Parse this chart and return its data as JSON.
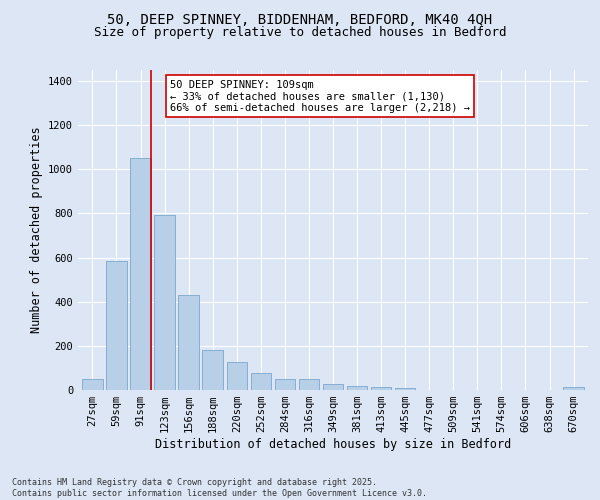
{
  "title_line1": "50, DEEP SPINNEY, BIDDENHAM, BEDFORD, MK40 4QH",
  "title_line2": "Size of property relative to detached houses in Bedford",
  "xlabel": "Distribution of detached houses by size in Bedford",
  "ylabel": "Number of detached properties",
  "categories": [
    "27sqm",
    "59sqm",
    "91sqm",
    "123sqm",
    "156sqm",
    "188sqm",
    "220sqm",
    "252sqm",
    "284sqm",
    "316sqm",
    "349sqm",
    "381sqm",
    "413sqm",
    "445sqm",
    "477sqm",
    "509sqm",
    "541sqm",
    "574sqm",
    "606sqm",
    "638sqm",
    "670sqm"
  ],
  "values": [
    50,
    585,
    1050,
    795,
    432,
    180,
    125,
    75,
    50,
    50,
    25,
    20,
    15,
    10,
    0,
    0,
    0,
    0,
    0,
    0,
    15
  ],
  "bar_color": "#b8cfe8",
  "bar_edge_color": "#6b9dc8",
  "background_color": "#dce6f5",
  "grid_color": "#ffffff",
  "vline_color": "#cc0000",
  "vline_x": 2.42,
  "annotation_text": "50 DEEP SPINNEY: 109sqm\n← 33% of detached houses are smaller (1,130)\n66% of semi-detached houses are larger (2,218) →",
  "annotation_box_edgecolor": "#cc0000",
  "annotation_box_facecolor": "#ffffff",
  "ylim": [
    0,
    1450
  ],
  "yticks": [
    0,
    200,
    400,
    600,
    800,
    1000,
    1200,
    1400
  ],
  "footnote": "Contains HM Land Registry data © Crown copyright and database right 2025.\nContains public sector information licensed under the Open Government Licence v3.0.",
  "title_fontsize": 10,
  "subtitle_fontsize": 9,
  "axis_label_fontsize": 8.5,
  "tick_fontsize": 7.5,
  "annot_fontsize": 7.5,
  "footnote_fontsize": 6
}
